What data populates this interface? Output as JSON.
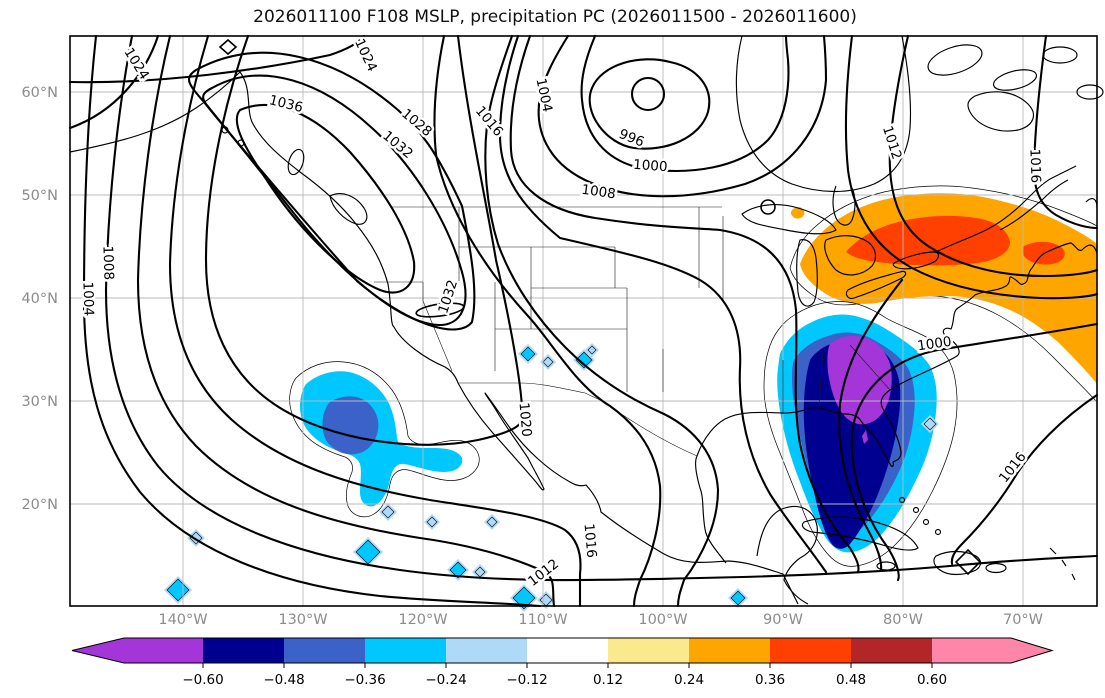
{
  "title": "2026011100 F108 MSLP, precipitation PC (2026011500 - 2026011600)",
  "axes": {
    "x_ticks": [
      "140°W",
      "130°W",
      "120°W",
      "110°W",
      "100°W",
      "90°W",
      "80°W",
      "70°W"
    ],
    "y_ticks": [
      "60°N",
      "50°N",
      "40°N",
      "30°N",
      "20°N"
    ]
  },
  "colorbar": {
    "tick_labels": [
      "−0.60",
      "−0.48",
      "−0.36",
      "−0.24",
      "−0.12",
      "0.12",
      "0.24",
      "0.36",
      "0.48",
      "0.60"
    ],
    "colors": [
      "#a435d8",
      "#000090",
      "#3a62c8",
      "#00c8ff",
      "#aed9f7",
      "#ffffff",
      "#fbe98e",
      "#ffa500",
      "#ff4000",
      "#b2262a",
      "#ff86a9"
    ]
  },
  "map": {
    "contour_labels": [
      "1024",
      "1024",
      "1036",
      "1032",
      "1032",
      "1028",
      "1016",
      "1004",
      "996",
      "1000",
      "1008",
      "1008",
      "1004",
      "1020",
      "1016",
      "1012",
      "1012",
      "1016",
      "1000",
      "1016"
    ]
  },
  "chart_data": {
    "type": "contour_map",
    "title": "2026011100 F108 MSLP, precipitation PC (2026011500 - 2026011600)",
    "region": "North America (approx. 148°W–64°W, 12°N–65°N)",
    "x_axis": {
      "ticks": [
        "140°W",
        "130°W",
        "120°W",
        "110°W",
        "100°W",
        "90°W",
        "80°W",
        "70°W"
      ]
    },
    "y_axis": {
      "ticks": [
        "60°N",
        "50°N",
        "40°N",
        "30°N",
        "20°N"
      ]
    },
    "contour_field": {
      "name": "MSLP",
      "units": "hPa",
      "interval": 4,
      "labeled_levels": [
        996,
        1000,
        1004,
        1008,
        1012,
        1016,
        1020,
        1024,
        1028,
        1032,
        1036
      ]
    },
    "shaded_field": {
      "name": "precipitation PC",
      "colorbar_levels": [
        -0.6,
        -0.48,
        -0.36,
        -0.24,
        -0.12,
        0.12,
        0.24,
        0.36,
        0.48,
        0.6
      ],
      "colors": [
        "#a435d8",
        "#000090",
        "#3a62c8",
        "#00c8ff",
        "#aed9f7",
        "#ffffff",
        "#fbe98e",
        "#ffa500",
        "#ff4000",
        "#b2262a",
        "#ff86a9"
      ],
      "regions": [
        {
          "area": "Southeast US through Mid-Atlantic, Florida and Cuba",
          "sign": "negative",
          "peak": "< -0.60",
          "core": "purple core over Virginia/Carolinas, navy core over Gulf Stream / Florida"
        },
        {
          "area": "Eastern Pacific off southern California / Baja (~125°W, 28–33°N)",
          "sign": "negative",
          "peak": "-0.48 to -0.36"
        },
        {
          "area": "Great Lakes / St. Lawrence valley / Quebec / Maritimes to Atlantic",
          "sign": "positive",
          "peak": "0.36 to 0.48",
          "core": "red-orange core along the St. Lawrence"
        },
        {
          "area": "Scattered small negative spots over SW US, Mexico and the southern map edge",
          "sign": "negative",
          "peak": "-0.24 to -0.12"
        }
      ]
    },
    "pressure_features": [
      {
        "type": "low",
        "value_hpa": 996,
        "location": "top-center of map (~105°W, 62°N)"
      },
      {
        "type": "high",
        "value_hpa": 1036,
        "location": "ridge over Pacific Northwest / British Columbia"
      },
      {
        "type": "low",
        "value_hpa": 1000,
        "location": "US East Coast trough (~77°W)"
      },
      {
        "type": "high",
        "value_hpa": 1016,
        "location": "western Atlantic, southeast corner"
      }
    ]
  }
}
